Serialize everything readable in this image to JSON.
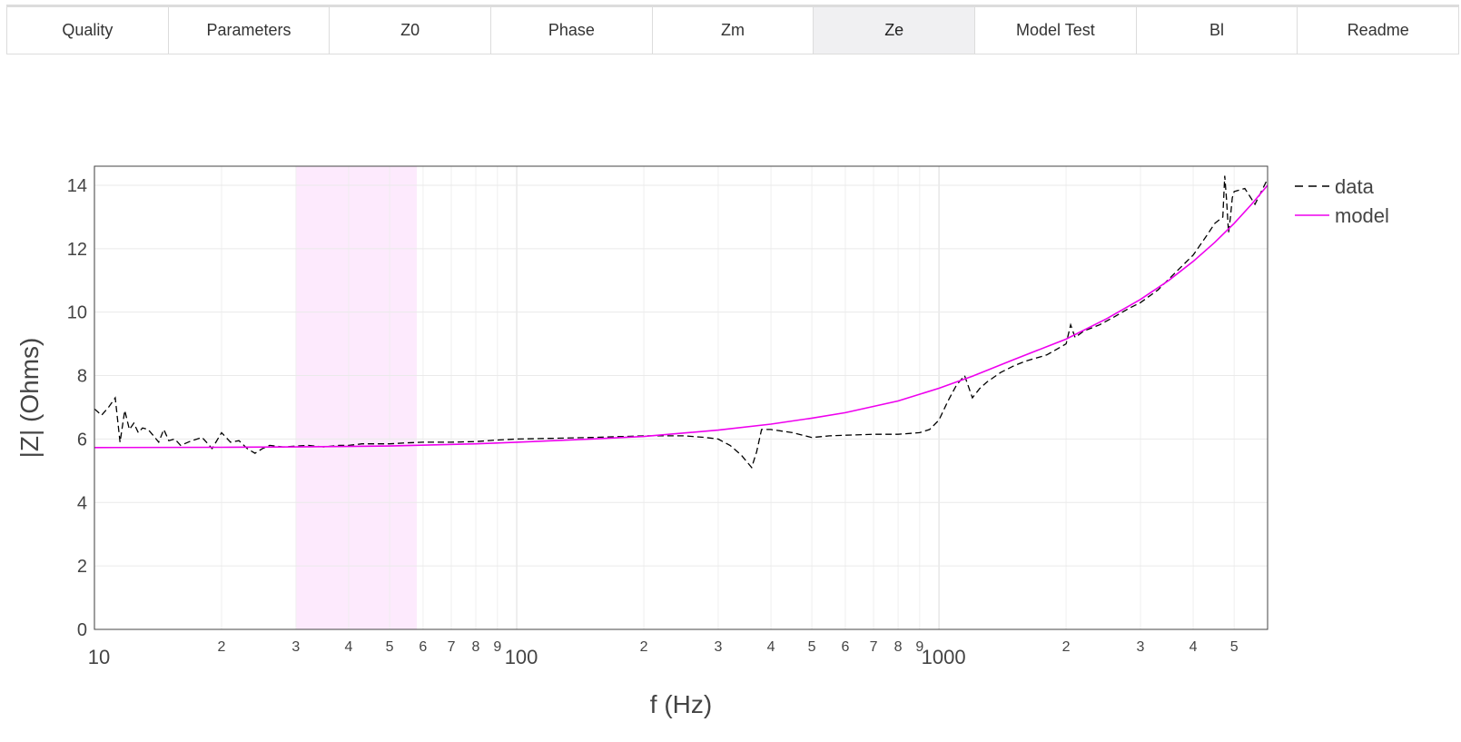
{
  "tabs": [
    {
      "label": "Quality",
      "name": "tab-quality"
    },
    {
      "label": "Parameters",
      "name": "tab-parameters"
    },
    {
      "label": "Z0",
      "name": "tab-z0"
    },
    {
      "label": "Phase",
      "name": "tab-phase"
    },
    {
      "label": "Zm",
      "name": "tab-zm"
    },
    {
      "label": "Ze",
      "name": "tab-ze",
      "active": true
    },
    {
      "label": "Model Test",
      "name": "tab-model-test"
    },
    {
      "label": "Bl",
      "name": "tab-bl"
    },
    {
      "label": "Readme",
      "name": "tab-readme"
    }
  ],
  "chart_data": {
    "type": "line",
    "xscale": "log",
    "xlabel": "f (Hz)",
    "ylabel": "|Z| (Ohms)",
    "xlim": [
      10,
      6000
    ],
    "ylim": [
      0,
      14.6
    ],
    "yticks": [
      0,
      2,
      4,
      6,
      8,
      10,
      12,
      14
    ],
    "xticks_major": [
      {
        "v": 10,
        "label": "10"
      },
      {
        "v": 100,
        "label": "100"
      },
      {
        "v": 1000,
        "label": "1000"
      }
    ],
    "xticks_minor": [
      {
        "v": 20,
        "label": "2"
      },
      {
        "v": 30,
        "label": "3"
      },
      {
        "v": 40,
        "label": "4"
      },
      {
        "v": 50,
        "label": "5"
      },
      {
        "v": 60,
        "label": "6"
      },
      {
        "v": 70,
        "label": "7"
      },
      {
        "v": 80,
        "label": "8"
      },
      {
        "v": 90,
        "label": "9"
      },
      {
        "v": 200,
        "label": "2"
      },
      {
        "v": 300,
        "label": "3"
      },
      {
        "v": 400,
        "label": "4"
      },
      {
        "v": 500,
        "label": "5"
      },
      {
        "v": 600,
        "label": "6"
      },
      {
        "v": 700,
        "label": "7"
      },
      {
        "v": 800,
        "label": "8"
      },
      {
        "v": 900,
        "label": "9"
      },
      {
        "v": 2000,
        "label": "2"
      },
      {
        "v": 3000,
        "label": "3"
      },
      {
        "v": 4000,
        "label": "4"
      },
      {
        "v": 5000,
        "label": "5"
      }
    ],
    "shaded_band": {
      "x": [
        30,
        58
      ],
      "color": "#fdeafd"
    },
    "grid": true,
    "legend_position": "top-right",
    "series": [
      {
        "name": "data",
        "color": "#000000",
        "dash": "dashed",
        "x": [
          10,
          10.4,
          10.8,
          11.2,
          11.5,
          11.8,
          12.1,
          12.4,
          12.7,
          13.0,
          13.4,
          13.8,
          14.2,
          14.6,
          15.0,
          15.5,
          16,
          17,
          18,
          19,
          20,
          21,
          22,
          23,
          24,
          25,
          26,
          28,
          30,
          32,
          35,
          38,
          40,
          43,
          46,
          50,
          55,
          60,
          70,
          80,
          90,
          100,
          120,
          150,
          180,
          200,
          250,
          280,
          300,
          320,
          340,
          350,
          360,
          370,
          380,
          400,
          450,
          500,
          550,
          600,
          700,
          800,
          900,
          950,
          1000,
          1050,
          1100,
          1150,
          1200,
          1250,
          1300,
          1400,
          1500,
          1600,
          1800,
          2000,
          2050,
          2100,
          2150,
          2200,
          2400,
          2600,
          2800,
          3000,
          3300,
          3600,
          4000,
          4300,
          4500,
          4700,
          4750,
          4800,
          4850,
          4900,
          4950,
          5000,
          5300,
          5600,
          6000
        ],
        "y": [
          6.95,
          6.75,
          7.0,
          7.3,
          5.9,
          6.9,
          6.3,
          6.5,
          6.2,
          6.35,
          6.3,
          6.1,
          5.9,
          6.3,
          5.95,
          6.0,
          5.8,
          5.95,
          6.05,
          5.7,
          6.2,
          5.9,
          5.95,
          5.7,
          5.55,
          5.7,
          5.8,
          5.75,
          5.78,
          5.8,
          5.75,
          5.8,
          5.8,
          5.85,
          5.85,
          5.85,
          5.88,
          5.9,
          5.9,
          5.92,
          5.97,
          6.0,
          6.02,
          6.05,
          6.08,
          6.1,
          6.1,
          6.05,
          6.0,
          5.8,
          5.5,
          5.3,
          5.1,
          5.6,
          6.3,
          6.3,
          6.2,
          6.05,
          6.1,
          6.12,
          6.15,
          6.15,
          6.2,
          6.3,
          6.6,
          7.2,
          7.7,
          8.0,
          7.3,
          7.6,
          7.8,
          8.1,
          8.3,
          8.45,
          8.65,
          9.0,
          9.6,
          9.2,
          9.3,
          9.4,
          9.6,
          9.85,
          10.1,
          10.3,
          10.7,
          11.2,
          11.8,
          12.4,
          12.8,
          13.0,
          14.3,
          13.5,
          12.5,
          13.0,
          13.6,
          13.8,
          13.9,
          13.4,
          14.2
        ]
      },
      {
        "name": "model",
        "color": "#ee00ee",
        "dash": "solid",
        "x": [
          10,
          20,
          30,
          50,
          80,
          100,
          150,
          200,
          300,
          400,
          500,
          600,
          800,
          1000,
          1200,
          1500,
          2000,
          2500,
          3000,
          3500,
          4000,
          4500,
          5000,
          5500,
          6000
        ],
        "y": [
          5.73,
          5.74,
          5.75,
          5.78,
          5.85,
          5.9,
          6.0,
          6.08,
          6.28,
          6.47,
          6.66,
          6.83,
          7.2,
          7.6,
          7.98,
          8.5,
          9.15,
          9.8,
          10.4,
          11.0,
          11.6,
          12.2,
          12.8,
          13.4,
          14.0
        ]
      }
    ]
  }
}
